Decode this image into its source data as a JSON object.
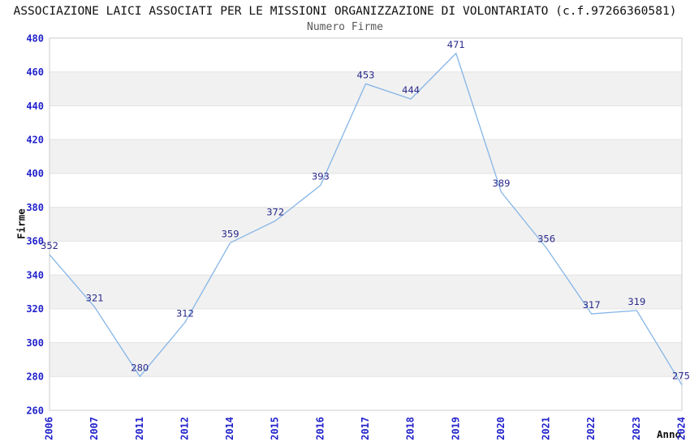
{
  "header": {
    "title": "ASSOCIAZIONE LAICI ASSOCIATI PER LE MISSIONI ORGANIZZAZIONE DI VOLONTARIATO (c.f.97266360581)",
    "subtitle": "Numero Firme"
  },
  "chart_data": {
    "type": "line",
    "title": "Numero Firme",
    "categories": [
      "2006",
      "2007",
      "2011",
      "2012",
      "2014",
      "2015",
      "2016",
      "2017",
      "2018",
      "2019",
      "2020",
      "2021",
      "2022",
      "2023",
      "2024"
    ],
    "values": [
      352,
      321,
      280,
      312,
      359,
      372,
      393,
      453,
      444,
      471,
      389,
      356,
      317,
      319,
      275
    ],
    "series": [
      {
        "name": "Numero Firme"
      }
    ],
    "xlabel": "Anno",
    "ylabel": "Firme",
    "ylim": [
      260,
      480
    ],
    "ytick_step": 20,
    "yticks": [
      260,
      280,
      300,
      320,
      340,
      360,
      380,
      400,
      420,
      440,
      460,
      480
    ],
    "grid": "horizontal gridlines with alternating shaded bands",
    "legend": "none",
    "data_labels_shown": true,
    "colors": {
      "line": "#85b5e7",
      "tick_label": "#2222cc",
      "data_label": "#28288c",
      "band": "#f1f1f1",
      "grid": "#e2e2e2",
      "border": "#d4d4d4",
      "subtitle_text": "#595959",
      "title_text": "#111111"
    }
  }
}
